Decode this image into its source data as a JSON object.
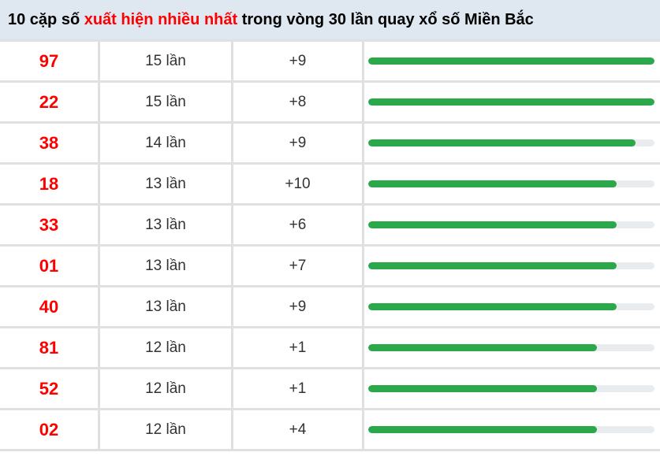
{
  "header": {
    "title_prefix": "10 cặp số ",
    "title_highlight": "xuất hiện nhiều nhất",
    "title_suffix": " trong vòng 30 lần quay xổ số Miền Bắc"
  },
  "colors": {
    "header_bg": "#dfe8f1",
    "title_text": "#000000",
    "title_highlight": "#ff0000",
    "pair_number": "#ff0000",
    "body_text": "#333333",
    "bar_fill": "#2aa84a",
    "bar_track": "#e9ecef",
    "grid_line": "#e0e0e0"
  },
  "rows": [
    {
      "number": "97",
      "count": "15 lần",
      "delta": "+9",
      "bar_percent": 100
    },
    {
      "number": "22",
      "count": "15 lần",
      "delta": "+8",
      "bar_percent": 100
    },
    {
      "number": "38",
      "count": "14 lần",
      "delta": "+9",
      "bar_percent": 93.33
    },
    {
      "number": "18",
      "count": "13 lần",
      "delta": "+10",
      "bar_percent": 86.67
    },
    {
      "number": "33",
      "count": "13 lần",
      "delta": "+6",
      "bar_percent": 86.67
    },
    {
      "number": "01",
      "count": "13 lần",
      "delta": "+7",
      "bar_percent": 86.67
    },
    {
      "number": "40",
      "count": "13 lần",
      "delta": "+9",
      "bar_percent": 86.67
    },
    {
      "number": "81",
      "count": "12 lần",
      "delta": "+1",
      "bar_percent": 80
    },
    {
      "number": "52",
      "count": "12 lần",
      "delta": "+1",
      "bar_percent": 80
    },
    {
      "number": "02",
      "count": "12 lần",
      "delta": "+4",
      "bar_percent": 80
    }
  ],
  "chart_data": {
    "type": "bar",
    "title": "10 cặp số xuất hiện nhiều nhất trong vòng 30 lần quay xổ số Miền Bắc",
    "orientation": "horizontal",
    "categories": [
      "97",
      "22",
      "38",
      "18",
      "33",
      "01",
      "40",
      "81",
      "52",
      "02"
    ],
    "values": [
      15,
      15,
      14,
      13,
      13,
      13,
      13,
      12,
      12,
      12
    ],
    "value_labels": [
      "15 lần",
      "15 lần",
      "14 lần",
      "13 lần",
      "13 lần",
      "13 lần",
      "13 lần",
      "12 lần",
      "12 lần",
      "12 lần"
    ],
    "deltas": [
      "+9",
      "+8",
      "+9",
      "+10",
      "+6",
      "+7",
      "+9",
      "+1",
      "+1",
      "+4"
    ],
    "unit": "lần",
    "xlim": [
      0,
      15
    ],
    "grid": false,
    "legend": false
  }
}
